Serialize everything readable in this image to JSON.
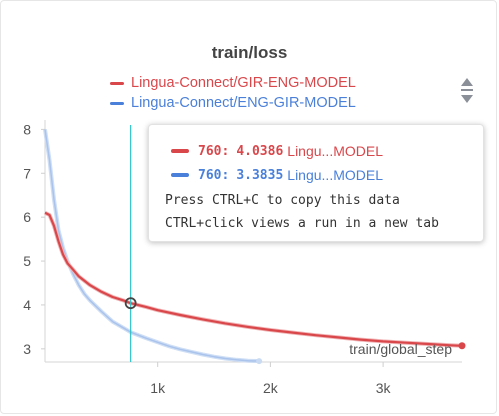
{
  "colors": {
    "run_red": "#d9474b",
    "run_blue": "#4a80d9",
    "run_blue_smoothed_faint": "#c9daf3",
    "cursor_line": "#2ec3c9",
    "grid": "#e8e8e8"
  },
  "chart_data": {
    "type": "line",
    "title": "train/loss",
    "xlabel": "train/global_step",
    "ylabel": "",
    "xlim": [
      0,
      3700
    ],
    "ylim": [
      2.7,
      8.1
    ],
    "x_ticks": [
      1000,
      2000,
      3000
    ],
    "x_tick_labels": [
      "1k",
      "2k",
      "3k"
    ],
    "y_ticks": [
      3,
      4,
      5,
      6,
      7,
      8
    ],
    "y_tick_labels": [
      "3",
      "4",
      "5",
      "6",
      "7",
      "8"
    ],
    "grid": false,
    "legend_position": "top-center",
    "cursor_x": 760,
    "series": [
      {
        "name": "Lingua-Connect/GIR-ENG-MODEL",
        "color": "#d9474b",
        "x": [
          0,
          40,
          80,
          120,
          160,
          200,
          250,
          300,
          350,
          400,
          500,
          600,
          700,
          760,
          900,
          1000,
          1200,
          1400,
          1600,
          1800,
          2000,
          2200,
          2400,
          2600,
          2800,
          3000,
          3200,
          3400,
          3600,
          3700
        ],
        "y": [
          6.1,
          6.05,
          5.8,
          5.45,
          5.15,
          4.95,
          4.8,
          4.65,
          4.55,
          4.45,
          4.3,
          4.18,
          4.1,
          4.04,
          3.95,
          3.88,
          3.77,
          3.67,
          3.58,
          3.5,
          3.43,
          3.37,
          3.31,
          3.26,
          3.21,
          3.17,
          3.14,
          3.11,
          3.08,
          3.07
        ]
      },
      {
        "name": "Lingua-Connect/ENG-GIR-MODEL",
        "color": "#4a80d9",
        "x": [
          0,
          40,
          80,
          120,
          160,
          200,
          250,
          300,
          350,
          400,
          500,
          600,
          700,
          760,
          900,
          1000,
          1100,
          1200,
          1300,
          1400,
          1500,
          1600,
          1700,
          1800,
          1900
        ],
        "y": [
          8.0,
          7.3,
          6.4,
          5.7,
          5.3,
          5.0,
          4.7,
          4.45,
          4.25,
          4.1,
          3.85,
          3.62,
          3.47,
          3.38,
          3.24,
          3.15,
          3.06,
          2.99,
          2.93,
          2.87,
          2.82,
          2.78,
          2.75,
          2.73,
          2.72
        ]
      }
    ]
  },
  "tooltip": {
    "rows": [
      {
        "step": "760",
        "sep": ":",
        "value": "4.0386",
        "name": "Lingu...MODEL",
        "color": "#d9474b"
      },
      {
        "step": "760",
        "sep": ":",
        "value": "3.3835",
        "name": "Lingu...MODEL",
        "color": "#4a80d9"
      }
    ],
    "note_copy": "Press CTRL+C to copy this data",
    "note_click": "CTRL+click views a run in a new tab"
  },
  "legend_scroll": {
    "up_icon": "triangle-up-icon",
    "down_icon": "triangle-down-icon"
  }
}
